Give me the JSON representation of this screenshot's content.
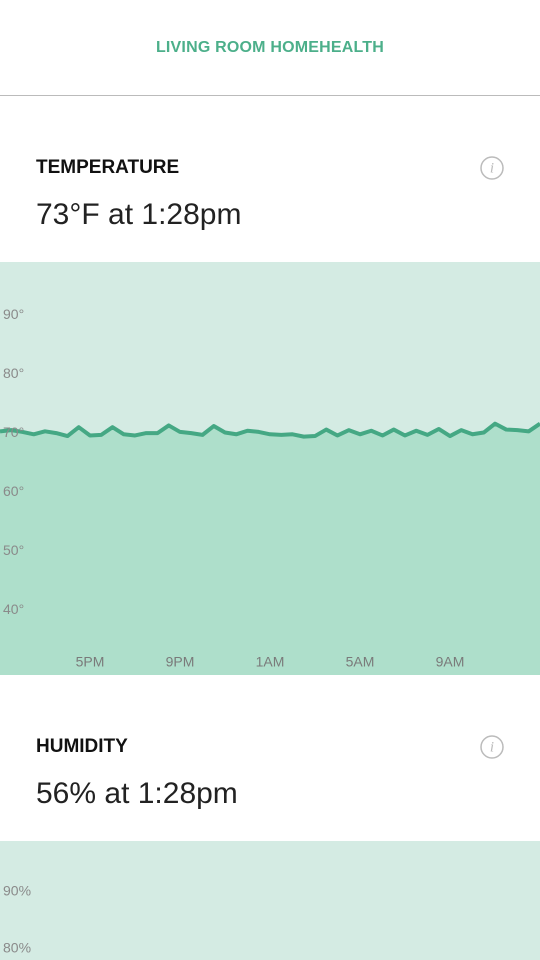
{
  "header": {
    "title": "LIVING ROOM HOMEHEALTH"
  },
  "sections": [
    {
      "title": "TEMPERATURE",
      "reading": "73°F at 1:28pm"
    },
    {
      "title": "HUMIDITY",
      "reading": "56% at 1:28pm"
    }
  ],
  "chart_data": [
    {
      "type": "area",
      "x": [
        13,
        13.5,
        14,
        14.5,
        15,
        15.5,
        16,
        16.5,
        17,
        17.5,
        18,
        18.5,
        19,
        19.5,
        20,
        20.5,
        21,
        21.5,
        22,
        22.5,
        23,
        23.5,
        24,
        24.5,
        25,
        25.5,
        26,
        26.5,
        27,
        27.5,
        28,
        28.5,
        29,
        29.5,
        30,
        30.5,
        31,
        31.5,
        32,
        32.5,
        33,
        33.5,
        34,
        34.5,
        35,
        35.5,
        36,
        36.5,
        37
      ],
      "series": [
        {
          "color": "#45a884",
          "fill": "#aedfcb",
          "values": [
            70.3,
            70.5,
            70.2,
            69.8,
            70.3,
            70.0,
            69.5,
            71.0,
            69.6,
            69.7,
            71.0,
            69.8,
            69.6,
            70.0,
            70.0,
            71.3,
            70.2,
            70.0,
            69.7,
            71.2,
            70.1,
            69.8,
            70.4,
            70.2,
            69.8,
            69.7,
            69.8,
            69.4,
            69.5,
            70.6,
            69.6,
            70.5,
            69.8,
            70.4,
            69.6,
            70.6,
            69.6,
            70.4,
            69.7,
            70.7,
            69.5,
            70.5,
            69.8,
            70.1,
            71.6,
            70.6,
            70.5,
            70.3,
            71.6
          ]
        }
      ],
      "xlim": [
        13,
        37
      ],
      "xticks": [
        {
          "value": 17,
          "label": "5PM"
        },
        {
          "value": 21,
          "label": "9PM"
        },
        {
          "value": 25,
          "label": "1AM"
        },
        {
          "value": 29,
          "label": "5AM"
        },
        {
          "value": 33,
          "label": "9AM"
        }
      ],
      "ylim": [
        29,
        99
      ],
      "yticks": [
        {
          "value": 90,
          "label": "90°"
        },
        {
          "value": 80,
          "label": "80°"
        },
        {
          "value": 70,
          "label": "70°"
        },
        {
          "value": 60,
          "label": "60°"
        },
        {
          "value": 50,
          "label": "50°"
        },
        {
          "value": 40,
          "label": "40°"
        }
      ],
      "background": "#d4ebe3"
    },
    {
      "type": "area",
      "ylim": [
        78,
        99
      ],
      "yticks": [
        {
          "value": 90,
          "label": "90%"
        },
        {
          "value": 80,
          "label": "80%"
        }
      ],
      "background": "#d4ebe3"
    }
  ]
}
